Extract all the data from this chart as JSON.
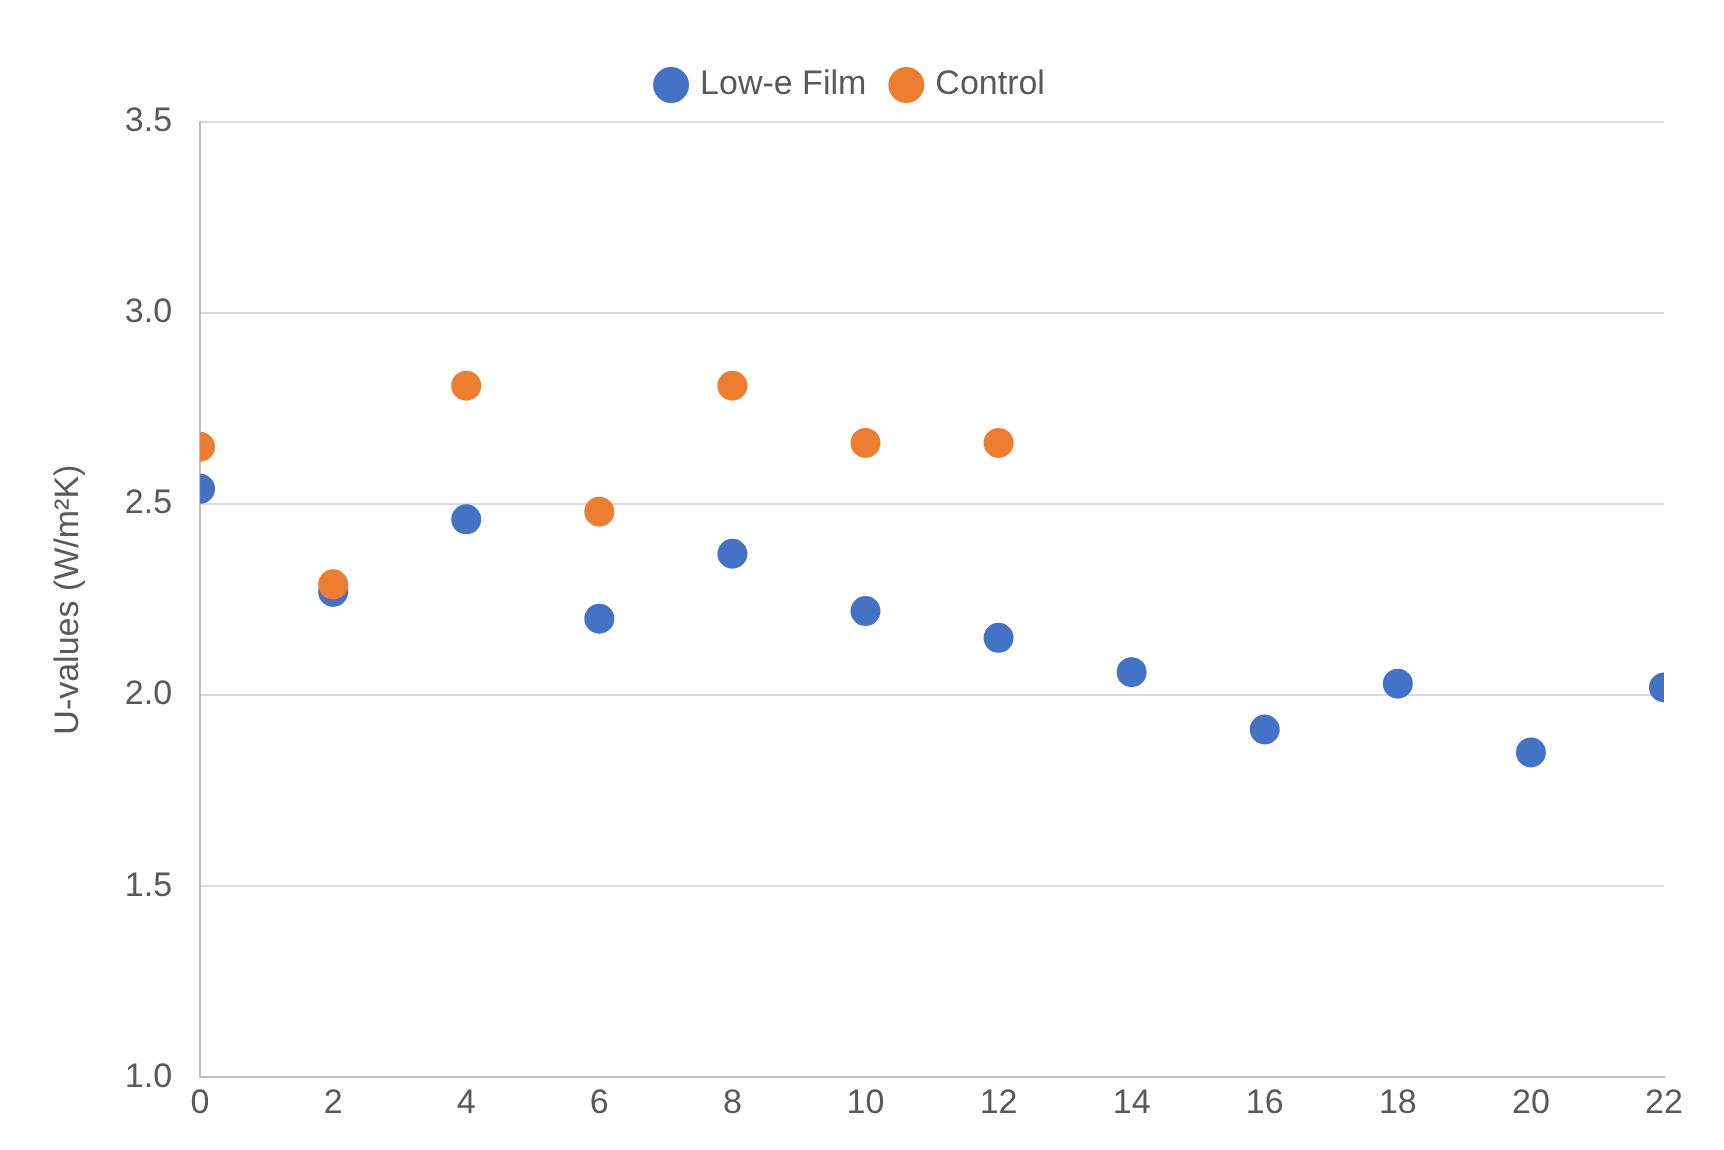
{
  "chart_data": {
    "type": "scatter",
    "ylabel": "U-values (W/m²K)",
    "xlim": [
      0,
      22
    ],
    "xticks": [
      0,
      2,
      4,
      6,
      8,
      10,
      12,
      14,
      16,
      18,
      20,
      22
    ],
    "ylim": [
      1.0,
      3.5
    ],
    "yticks": [
      {
        "value": 1.0,
        "label": "1.0"
      },
      {
        "value": 1.5,
        "label": "1.5"
      },
      {
        "value": 2.0,
        "label": "2.0"
      },
      {
        "value": 2.5,
        "label": "2.5"
      },
      {
        "value": 3.0,
        "label": "3.0"
      },
      {
        "value": 3.5,
        "label": "3.5"
      }
    ],
    "grid": "y",
    "legend": "top",
    "marker": "circle",
    "series": [
      {
        "name": "Low-e Film",
        "color": "#4472c4",
        "x": [
          0,
          2,
          4,
          6,
          8,
          10,
          12,
          14,
          16,
          18,
          20,
          22
        ],
        "values": [
          2.54,
          2.27,
          2.46,
          2.2,
          2.37,
          2.22,
          2.15,
          2.06,
          1.91,
          2.03,
          1.85,
          2.02
        ]
      },
      {
        "name": "Control",
        "color": "#ed7d31",
        "x": [
          0,
          2,
          4,
          6,
          8,
          10,
          12
        ],
        "values": [
          2.65,
          2.29,
          2.81,
          2.48,
          2.81,
          2.66,
          2.66
        ]
      }
    ]
  }
}
